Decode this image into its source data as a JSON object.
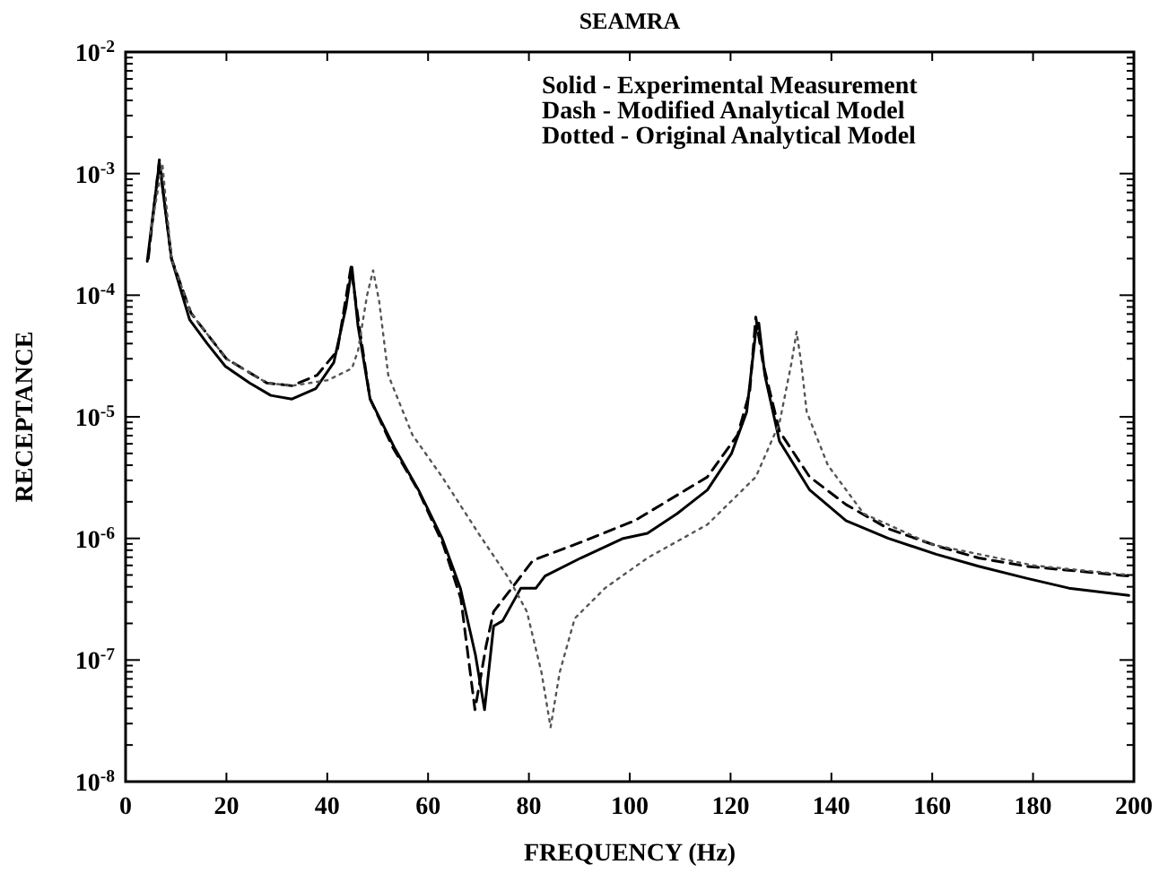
{
  "chart_data": {
    "type": "line",
    "title": "SEAMRA",
    "xlabel": "FREQUENCY (Hz)",
    "ylabel": "RECEPTANCE",
    "log": "y",
    "xlim": [
      0,
      200
    ],
    "xticks": [
      0,
      20,
      40,
      60,
      80,
      100,
      120,
      140,
      160,
      180,
      200
    ],
    "ylim": [
      1e-08,
      0.01
    ],
    "yticks": [
      {
        "value": 1e-08,
        "label": "10$^{-8}$"
      },
      {
        "value": 1e-07,
        "label": "10$^{-7}$"
      },
      {
        "value": 1e-06,
        "label": "10$^{-6}$"
      },
      {
        "value": 1e-05,
        "label": "10$^{-5}$"
      },
      {
        "value": 0.0001,
        "label": "10$^{-4}$"
      },
      {
        "value": 0.001,
        "label": "10$^{-3}$"
      },
      {
        "value": 0.01,
        "label": "10$^{-2}$"
      }
    ],
    "grid": false,
    "annotations": [
      "Solid - Experimental Measurement",
      "Dash - Modified Analytical Model",
      "Dotted - Original Analytical Model"
    ],
    "series": [
      {
        "color": "#000000",
        "line_style": "solid",
        "x": [
          4.3,
          6.7,
          9.1,
          12.7,
          16.2,
          19.8,
          24.6,
          28.8,
          33,
          37.7,
          41.3,
          43.7,
          44.9,
          46.1,
          48.5,
          53.3,
          58.1,
          62.8,
          66.4,
          69.4,
          71.2,
          73,
          74.8,
          78.4,
          81.4,
          83.2,
          90.3,
          98.7,
          103.5,
          109.4,
          115.4,
          120.2,
          123.2,
          125,
          125.6,
          126.8,
          129.7,
          135.7,
          142.9,
          151.3,
          160.8,
          169.2,
          178.7,
          187.1,
          199
        ],
        "values": [
          0.00019,
          0.00123,
          0.0002,
          6.3e-05,
          4e-05,
          2.6e-05,
          1.9e-05,
          1.5e-05,
          1.4e-05,
          1.7e-05,
          2.8e-05,
          7.9e-05,
          0.00017,
          5.6e-05,
          1.4e-05,
          5.6e-06,
          2.5e-06,
          1e-06,
          3.9e-07,
          1.1e-07,
          3.9e-08,
          1.9e-07,
          2.1e-07,
          3.9e-07,
          3.9e-07,
          4.9e-07,
          6.9e-07,
          1e-06,
          1.1e-06,
          1.6e-06,
          2.5e-06,
          5e-06,
          1.1e-05,
          5e-05,
          5.9e-05,
          2.2e-05,
          6.3e-06,
          2.5e-06,
          1.4e-06,
          1e-06,
          7.4e-07,
          5.9e-07,
          4.7e-07,
          3.9e-07,
          3.4e-07
        ]
      },
      {
        "color": "#000000",
        "line_style": "dashed",
        "x": [
          4.5,
          6.7,
          9.1,
          13,
          20,
          28,
          33,
          38,
          42,
          44.7,
          46.5,
          48.5,
          53,
          58,
          63,
          66.5,
          69.3,
          71.5,
          73,
          76.6,
          80.8,
          90.3,
          101,
          115.4,
          121.4,
          123.8,
          125,
          126.4,
          129.7,
          135.7,
          142.9,
          151.3,
          160.8,
          169.2,
          178.7,
          199
        ],
        "values": [
          0.0002,
          0.0013,
          0.0002,
          7.1e-05,
          3e-05,
          1.9e-05,
          1.8e-05,
          2.2e-05,
          3.5e-05,
          0.00017,
          5e-05,
          1.4e-05,
          5.6e-06,
          2.5e-06,
          8.9e-07,
          3.2e-07,
          3.9e-08,
          1.3e-07,
          2.5e-07,
          3.9e-07,
          6.6e-07,
          9.3e-07,
          1.4e-06,
          3.2e-06,
          7.1e-06,
          1.6e-05,
          6.6e-05,
          2.8e-05,
          7.6e-06,
          3.2e-06,
          1.9e-06,
          1.2e-06,
          8.7e-07,
          6.9e-07,
          5.9e-07,
          4.9e-07
        ]
      },
      {
        "color": "#555555",
        "line_style": "dotted",
        "x": [
          4.9,
          7.3,
          9.1,
          13,
          20,
          28,
          33,
          40.1,
          44.9,
          46.1,
          47.9,
          49.1,
          50.3,
          52.1,
          56.9,
          62.8,
          70,
          76,
          79.6,
          82.5,
          84.3,
          86.1,
          89.1,
          95.1,
          103.5,
          115.4,
          125,
          129.7,
          132.1,
          133.1,
          134,
          135.1,
          139.3,
          146.4,
          160,
          180,
          199
        ],
        "values": [
          0.00032,
          0.0012,
          0.0002,
          7.1e-05,
          3e-05,
          1.9e-05,
          1.8e-05,
          2e-05,
          2.5e-05,
          3.5e-05,
          0.0001,
          0.00016,
          8.9e-05,
          2.2e-05,
          7.1e-06,
          3.2e-06,
          1.1e-06,
          4.7e-07,
          2.5e-07,
          7.9e-08,
          2.8e-08,
          7.9e-08,
          2.2e-07,
          3.9e-07,
          6.9e-07,
          1.3e-06,
          3.2e-06,
          8.9e-06,
          2.8e-05,
          5e-05,
          2.8e-05,
          1.1e-05,
          4e-06,
          1.6e-06,
          8.9e-07,
          6e-07,
          5e-07
        ]
      }
    ]
  }
}
